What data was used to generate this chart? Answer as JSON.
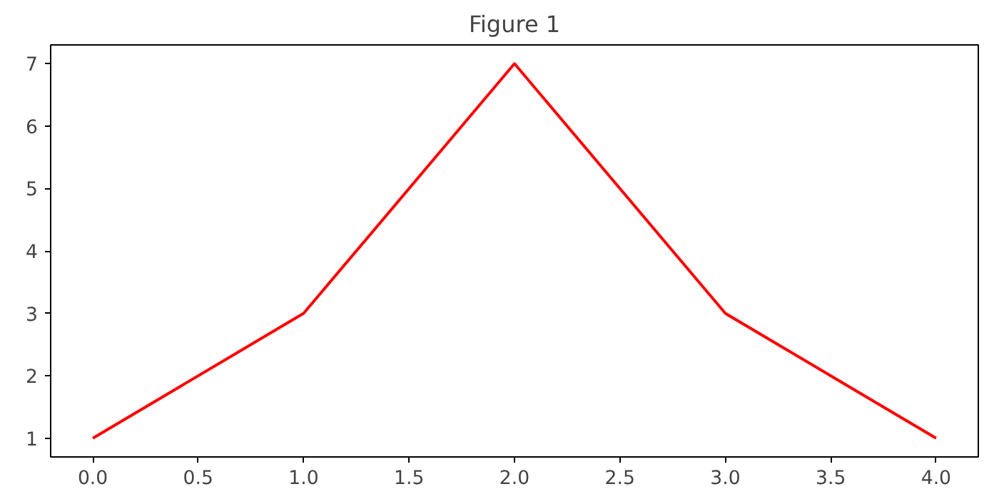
{
  "chart_data": {
    "type": "line",
    "title": "Figure 1",
    "x": [
      0,
      1,
      2,
      3,
      4
    ],
    "series": [
      {
        "color": "#ff0000",
        "values": [
          1,
          3,
          7,
          3,
          1
        ]
      }
    ],
    "xlim": [
      -0.2,
      4.2
    ],
    "ylim": [
      0.7,
      7.3
    ],
    "xticks": [
      {
        "value": 0,
        "label": "0.0"
      },
      {
        "value": 0.5,
        "label": "0.5"
      },
      {
        "value": 1,
        "label": "1.0"
      },
      {
        "value": 1.5,
        "label": "1.5"
      },
      {
        "value": 2,
        "label": "2.0"
      },
      {
        "value": 2.5,
        "label": "2.5"
      },
      {
        "value": 3,
        "label": "3.0"
      },
      {
        "value": 3.5,
        "label": "3.5"
      },
      {
        "value": 4,
        "label": "4.0"
      }
    ],
    "yticks": [
      1,
      2,
      3,
      4,
      5,
      6,
      7
    ],
    "grid": false,
    "marker": "none",
    "line_style": "solid"
  }
}
